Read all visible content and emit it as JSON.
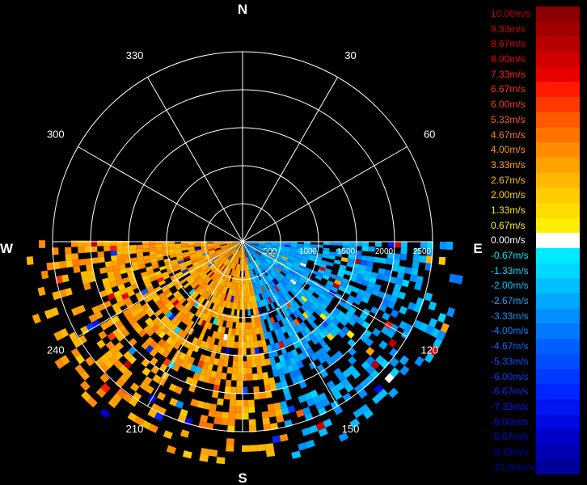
{
  "chart_data": {
    "type": "polar-radar-ppi",
    "cardinal_labels": {
      "north": "N",
      "east": "E",
      "south": "S",
      "west": "W"
    },
    "azimuth_labels": [
      {
        "deg": 30,
        "text": "30"
      },
      {
        "deg": 60,
        "text": "60"
      },
      {
        "deg": 120,
        "text": "120"
      },
      {
        "deg": 150,
        "text": "150"
      },
      {
        "deg": 210,
        "text": "210"
      },
      {
        "deg": 240,
        "text": "240"
      },
      {
        "deg": 300,
        "text": "300"
      },
      {
        "deg": 330,
        "text": "330"
      }
    ],
    "range_rings": [
      500,
      1000,
      1500,
      2000,
      2500
    ],
    "range_tick_labels": [
      "500",
      "1000",
      "1500",
      "2000",
      "2500"
    ],
    "max_range": 2500,
    "grid": true,
    "data_sector_azimuth_deg": [
      90,
      270
    ],
    "velocity_summary": [
      {
        "azimuth_from": 90,
        "azimuth_to": 165,
        "typical_velocity_ms": -2.7
      },
      {
        "azimuth_from": 165,
        "azimuth_to": 270,
        "typical_velocity_ms": 3.3
      }
    ],
    "colorbar": {
      "unit": "m/s",
      "entries": [
        {
          "label": "10.00m/s",
          "value": 10.0,
          "color": "#8b0000",
          "text_color": "#c00000"
        },
        {
          "label": "9.33m/s",
          "value": 9.33,
          "color": "#a10000",
          "text_color": "#d40000"
        },
        {
          "label": "8.67m/s",
          "value": 8.67,
          "color": "#b80000",
          "text_color": "#e00000"
        },
        {
          "label": "8.00m/s",
          "value": 8.0,
          "color": "#d00000",
          "text_color": "#ee0000"
        },
        {
          "label": "7.33m/s",
          "value": 7.33,
          "color": "#e80000",
          "text_color": "#ff1a1a"
        },
        {
          "label": "6.67m/s",
          "value": 6.67,
          "color": "#ff1a00",
          "text_color": "#ff2a1a"
        },
        {
          "label": "6.00m/s",
          "value": 6.0,
          "color": "#ff3a00",
          "text_color": "#ff3d1a"
        },
        {
          "label": "5.33m/s",
          "value": 5.33,
          "color": "#ff5a00",
          "text_color": "#ff5a1a"
        },
        {
          "label": "4.67m/s",
          "value": 4.67,
          "color": "#ff7400",
          "text_color": "#ff7a1a"
        },
        {
          "label": "4.00m/s",
          "value": 4.0,
          "color": "#ff8c00",
          "text_color": "#ff921a"
        },
        {
          "label": "3.33m/s",
          "value": 3.33,
          "color": "#ffa200",
          "text_color": "#ffa81a"
        },
        {
          "label": "2.67m/s",
          "value": 2.67,
          "color": "#ffb800",
          "text_color": "#ffbe1a"
        },
        {
          "label": "2.00m/s",
          "value": 2.0,
          "color": "#ffcc00",
          "text_color": "#ffd21a"
        },
        {
          "label": "1.33m/s",
          "value": 1.33,
          "color": "#ffdd00",
          "text_color": "#ffe21a"
        },
        {
          "label": "0.67m/s",
          "value": 0.67,
          "color": "#ffee00",
          "text_color": "#fff01a"
        },
        {
          "label": "0.00m/s",
          "value": 0.0,
          "color": "#ffffff",
          "text_color": "#ffffff"
        },
        {
          "label": "-0.67m/s",
          "value": -0.67,
          "color": "#00eaff",
          "text_color": "#00eaff"
        },
        {
          "label": "-1.33m/s",
          "value": -1.33,
          "color": "#00d8ff",
          "text_color": "#00d8ff"
        },
        {
          "label": "-2.00m/s",
          "value": -2.0,
          "color": "#00c0ff",
          "text_color": "#00c4ff"
        },
        {
          "label": "-2.67m/s",
          "value": -2.67,
          "color": "#00a8ff",
          "text_color": "#00aeff"
        },
        {
          "label": "-3.33m/s",
          "value": -3.33,
          "color": "#0090ff",
          "text_color": "#0098ff"
        },
        {
          "label": "-4.00m/s",
          "value": -4.0,
          "color": "#0078ff",
          "text_color": "#0080ff"
        },
        {
          "label": "-4.67m/s",
          "value": -4.67,
          "color": "#0060ff",
          "text_color": "#0068ff"
        },
        {
          "label": "-5.33m/s",
          "value": -5.33,
          "color": "#004cff",
          "text_color": "#0052ff"
        },
        {
          "label": "-6.00m/s",
          "value": -6.0,
          "color": "#0038ff",
          "text_color": "#003cff"
        },
        {
          "label": "-6.67m/s",
          "value": -6.67,
          "color": "#0026ff",
          "text_color": "#0028ff"
        },
        {
          "label": "-7.33m/s",
          "value": -7.33,
          "color": "#0016f0",
          "text_color": "#0018f8"
        },
        {
          "label": "-8.00m/s",
          "value": -8.0,
          "color": "#0008e0",
          "text_color": "#0010e8"
        },
        {
          "label": "-8.67m/s",
          "value": -8.67,
          "color": "#0000c8",
          "text_color": "#0008d0"
        },
        {
          "label": "-9.33m/s",
          "value": -9.33,
          "color": "#0000b0",
          "text_color": "#0000b8"
        },
        {
          "label": "-10.00m/s",
          "value": -10.0,
          "color": "#000098",
          "text_color": "#0000a0"
        }
      ]
    }
  }
}
